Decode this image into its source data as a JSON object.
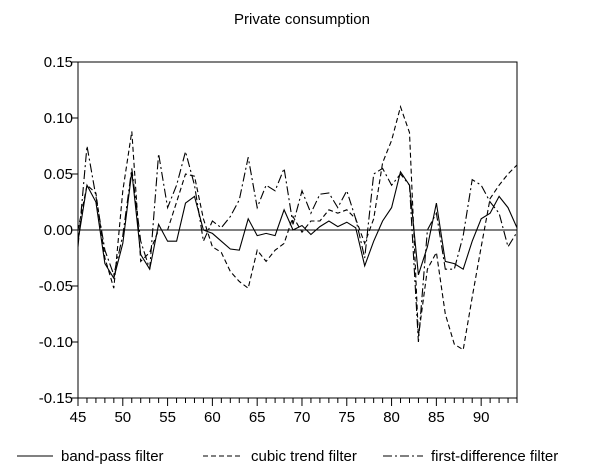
{
  "chart_data": {
    "type": "line",
    "title": "Private consumption",
    "xlabel": "",
    "ylabel": "",
    "xlim": [
      45,
      94
    ],
    "ylim": [
      -0.15,
      0.15
    ],
    "x_ticks": [
      45,
      50,
      55,
      60,
      65,
      70,
      75,
      80,
      85,
      90
    ],
    "y_ticks": [
      -0.15,
      -0.1,
      -0.05,
      0.0,
      0.05,
      0.1,
      0.15
    ],
    "y_tick_labels": [
      "-0.15",
      "-0.10",
      "-0.05",
      "0.00",
      "0.05",
      "0.10",
      "0.15"
    ],
    "zero_line": true,
    "grid": false,
    "legend_position": "bottom",
    "x": [
      45,
      46,
      47,
      48,
      49,
      50,
      51,
      52,
      53,
      54,
      55,
      56,
      57,
      58,
      59,
      60,
      61,
      62,
      63,
      64,
      65,
      66,
      67,
      68,
      69,
      70,
      71,
      72,
      73,
      74,
      75,
      76,
      77,
      78,
      79,
      80,
      81,
      82,
      83,
      84,
      85,
      86,
      87,
      88,
      89,
      90,
      91,
      92,
      93,
      94
    ],
    "series": [
      {
        "name": "band-pass filter",
        "dash": "solid",
        "values": [
          -0.01,
          0.04,
          0.025,
          -0.03,
          -0.043,
          -0.012,
          0.052,
          -0.022,
          -0.035,
          0.005,
          -0.01,
          -0.01,
          0.024,
          0.03,
          0.0,
          -0.003,
          -0.01,
          -0.017,
          -0.018,
          0.01,
          -0.005,
          -0.003,
          -0.005,
          0.018,
          0.0,
          0.004,
          -0.004,
          0.003,
          0.008,
          0.003,
          0.007,
          0.002,
          -0.032,
          -0.01,
          0.008,
          0.02,
          0.052,
          0.04,
          -0.04,
          -0.015,
          0.024,
          -0.028,
          -0.03,
          -0.035,
          -0.01,
          0.01,
          0.015,
          0.03,
          0.02,
          0.002
        ]
      },
      {
        "name": "cubic trend filter",
        "dash": "dashed",
        "values": [
          0.0,
          0.04,
          0.033,
          -0.025,
          -0.052,
          0.035,
          0.088,
          -0.028,
          -0.02,
          0.0,
          0.0,
          0.025,
          0.05,
          0.048,
          0.01,
          -0.015,
          -0.02,
          -0.037,
          -0.046,
          -0.052,
          -0.018,
          -0.028,
          -0.018,
          -0.012,
          0.012,
          -0.002,
          0.008,
          0.008,
          0.018,
          0.015,
          0.018,
          0.01,
          -0.012,
          0.01,
          0.06,
          0.08,
          0.11,
          0.087,
          -0.095,
          -0.035,
          -0.02,
          -0.075,
          -0.102,
          -0.107,
          -0.06,
          -0.015,
          0.028,
          0.04,
          0.05,
          0.058
        ]
      },
      {
        "name": "first-difference filter",
        "dash": "dash-dot",
        "values": [
          -0.015,
          0.075,
          0.03,
          -0.018,
          -0.04,
          -0.005,
          0.055,
          -0.01,
          -0.035,
          0.068,
          0.02,
          0.04,
          0.07,
          0.04,
          -0.01,
          0.008,
          0.002,
          0.012,
          0.027,
          0.065,
          0.02,
          0.04,
          0.035,
          0.055,
          0.005,
          0.035,
          0.015,
          0.032,
          0.033,
          0.02,
          0.035,
          0.01,
          -0.025,
          0.05,
          0.055,
          0.04,
          0.05,
          0.04,
          -0.1,
          0.0,
          0.015,
          -0.035,
          -0.035,
          -0.005,
          0.045,
          0.04,
          0.025,
          0.015,
          -0.015,
          -0.002
        ]
      }
    ]
  }
}
